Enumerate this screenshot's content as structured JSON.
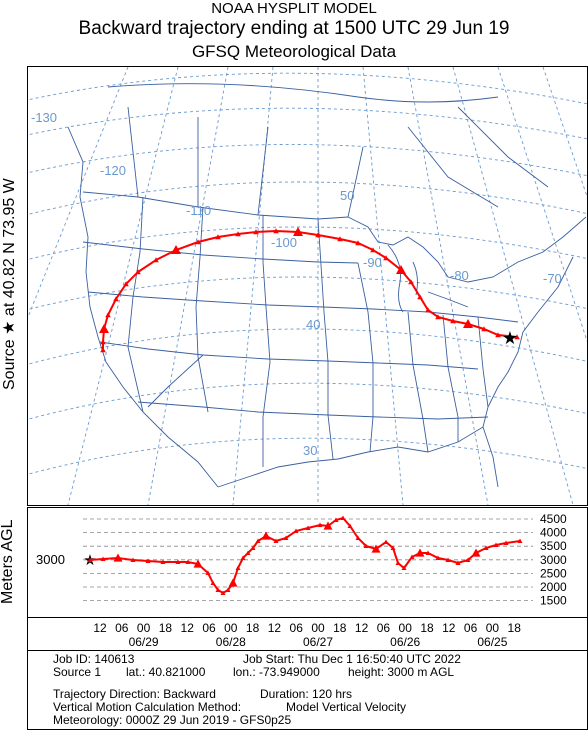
{
  "header": {
    "model": "NOAA HYSPLIT MODEL",
    "subtitle": "Backward trajectory ending at 1500 UTC 29 Jun 19",
    "data_source": "GFSQ Meteorological Data"
  },
  "map": {
    "side_label": "Source ★ at 40.82 N 73.95 W",
    "longitude_labels": [
      "-130",
      "-120",
      "-110",
      "-100",
      "-90",
      "-80",
      "-70"
    ],
    "latitude_labels": [
      "50",
      "40",
      "30"
    ],
    "trajectory_color": "#ff0000",
    "grid_color": "#6a9ad0",
    "border_color": "#3a5fa0"
  },
  "height_plot": {
    "side_label": "Meters AGL",
    "source_height_label": "3000",
    "ticks": [
      "4500",
      "4000",
      "3500",
      "3000",
      "2500",
      "2000",
      "1500"
    ]
  },
  "time_axis": {
    "hour_labels": [
      "12",
      "06",
      "00",
      "18",
      "12",
      "06",
      "00",
      "18",
      "12",
      "06",
      "00",
      "18",
      "12",
      "06",
      "00",
      "18",
      "12",
      "06",
      "00",
      "18"
    ],
    "date_labels": [
      "06/29",
      "06/28",
      "06/27",
      "06/26",
      "06/25"
    ]
  },
  "info": {
    "job_id": "Job ID: 140613",
    "job_start": "Job Start: Thu Dec  1 16:50:40 UTC 2022",
    "source": "Source 1",
    "lat": "lat.: 40.821000",
    "lon": "lon.: -73.949000",
    "height": "height: 3000 m AGL",
    "direction": "Trajectory Direction: Backward",
    "duration": "Duration: 120 hrs",
    "vertical_label": "Vertical Motion Calculation Method:",
    "vertical_value": "Model Vertical Velocity",
    "meteorology": "Meteorology: 0000Z 29 Jun 2019 - GFS0p25"
  }
}
